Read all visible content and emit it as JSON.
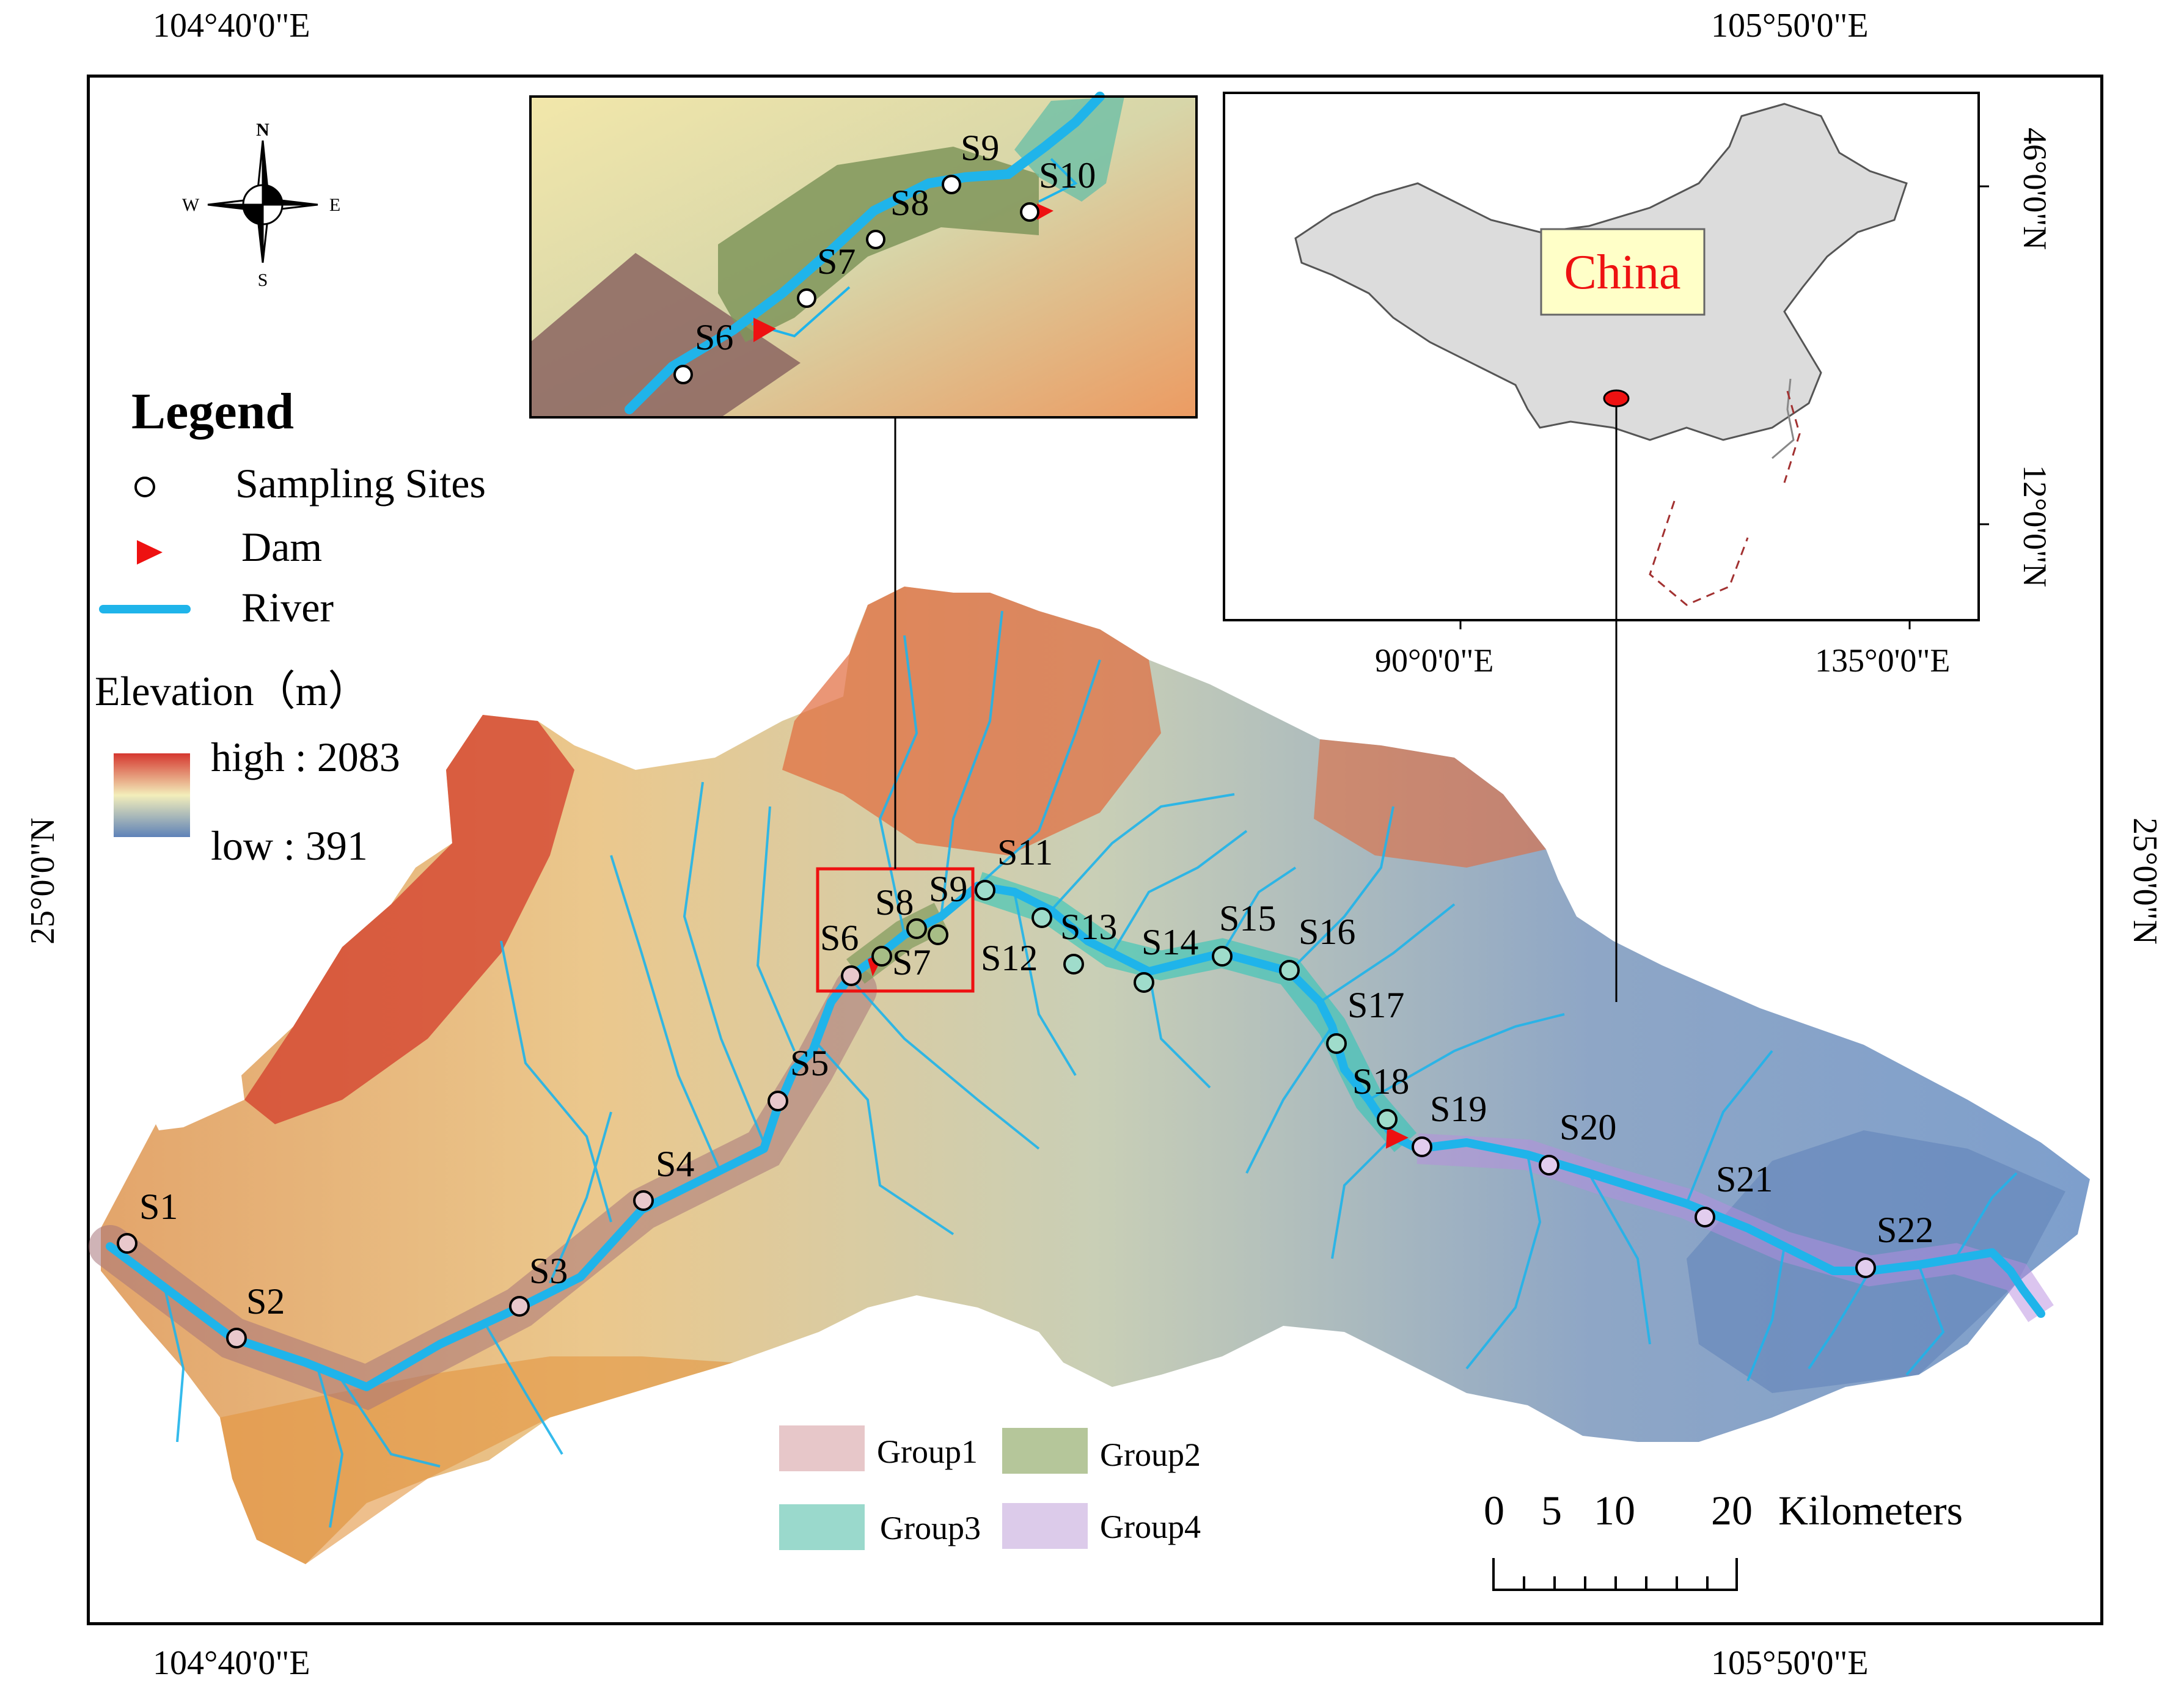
{
  "coordinates": {
    "top_left": "104°40'0\"E",
    "top_right": "105°50'0\"E",
    "bottom_left": "104°40'0\"E",
    "bottom_right": "105°50'0\"E",
    "left_lat": "25°0'0\"N",
    "right_lat": "25°0'0\"N"
  },
  "north_arrow": {
    "n": "N",
    "s": "S",
    "w": "W",
    "e": "E"
  },
  "legend": {
    "title": "Legend",
    "sampling_sites": "Sampling Sites",
    "dam": "Dam",
    "river": "River",
    "elevation_title": "Elevation（m）",
    "high": "high : 2083",
    "low": "low : 391"
  },
  "china_inset": {
    "label": "China",
    "lat_top": "46°0'0\"N",
    "lat_bottom": "12°0'0\"N",
    "lon_left": "90°0'0\"E",
    "lon_right": "135°0'0\"E"
  },
  "zoom_inset_labels": [
    "S6",
    "S7",
    "S8",
    "S9",
    "S10"
  ],
  "sites": [
    "S1",
    "S2",
    "S3",
    "S4",
    "S5",
    "S6",
    "S7",
    "S8",
    "S9",
    "S11",
    "S12",
    "S13",
    "S14",
    "S15",
    "S16",
    "S17",
    "S18",
    "S19",
    "S20",
    "S21",
    "S22"
  ],
  "groups": [
    {
      "label": "Group1",
      "color": "#e7c7c9"
    },
    {
      "label": "Group2",
      "color": "#b5c69a"
    },
    {
      "label": "Group3",
      "color": "#9ad9cc"
    },
    {
      "label": "Group4",
      "color": "#dccbea"
    }
  ],
  "scale_bar": {
    "labels": [
      "0",
      "5",
      "10",
      "20"
    ],
    "unit": "Kilometers"
  },
  "colors": {
    "river": "#1fb4ea",
    "dam": "#ee1111",
    "frame": "#000000",
    "elev_high": "#d5372f",
    "elev_mid": "#f3eeba",
    "elev_low": "#5e82b8"
  }
}
